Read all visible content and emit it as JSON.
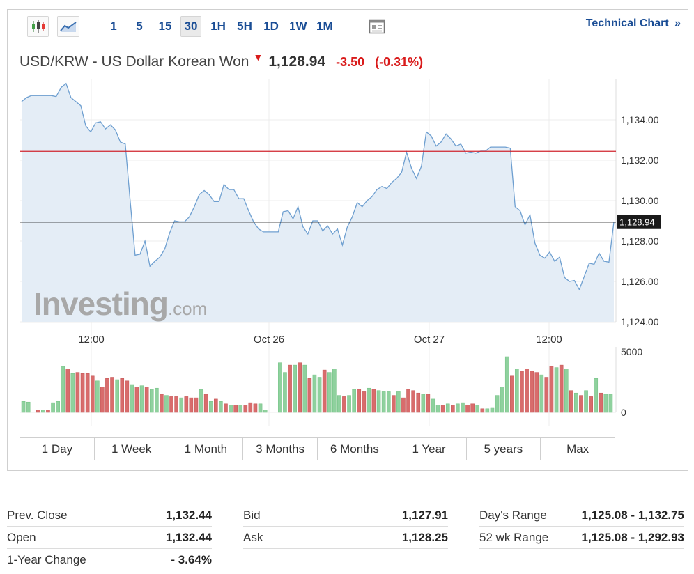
{
  "toolbar": {
    "timeframes": [
      "1",
      "5",
      "15",
      "30",
      "1H",
      "5H",
      "1D",
      "1W",
      "1M"
    ],
    "active_timeframe": "30",
    "technical_chart_label": "Technical Chart",
    "technical_chart_arrow": "»"
  },
  "quote": {
    "pair": "USD/KRW - US Dollar Korean Won",
    "last": "1,128.94",
    "change": "-3.50",
    "change_pct": "(-0.31%)"
  },
  "logo": {
    "main": "Investing",
    "suffix": ".com"
  },
  "chart_data": {
    "type": "area",
    "xlabels": [
      "12:00",
      "Oct 26",
      "Oct 27",
      "12:00"
    ],
    "ytick_labels": [
      "1,134.00",
      "1,132.00",
      "1,130.00",
      "1,128.00",
      "1,126.00",
      "1,124.00"
    ],
    "ylim": [
      1124,
      1136
    ],
    "last_value_label": "1,128.94",
    "reference_line_value": 1132.44,
    "current_line_value": 1128.94,
    "price": [
      1134.9,
      1135.1,
      1135.2,
      1135.2,
      1135.2,
      1135.2,
      1135.2,
      1135.15,
      1135.6,
      1135.8,
      1135.1,
      1134.9,
      1134.7,
      1133.7,
      1133.4,
      1133.85,
      1133.9,
      1133.55,
      1133.75,
      1133.5,
      1132.9,
      1132.8,
      1130.0,
      1127.3,
      1127.35,
      1128.0,
      1126.75,
      1127.0,
      1127.2,
      1127.6,
      1128.4,
      1129.0,
      1128.95,
      1128.95,
      1129.2,
      1129.7,
      1130.3,
      1130.5,
      1130.3,
      1129.95,
      1129.95,
      1130.8,
      1130.55,
      1130.55,
      1130.1,
      1130.1,
      1129.5,
      1128.95,
      1128.6,
      1128.45,
      1128.45,
      1128.45,
      1128.45,
      1129.45,
      1129.5,
      1129.1,
      1129.7,
      1128.7,
      1128.35,
      1129.0,
      1129.0,
      1128.5,
      1128.75,
      1128.35,
      1128.6,
      1127.8,
      1128.7,
      1129.2,
      1129.9,
      1129.7,
      1130.0,
      1130.2,
      1130.55,
      1130.7,
      1130.6,
      1130.9,
      1131.1,
      1131.4,
      1132.4,
      1131.6,
      1131.1,
      1131.7,
      1133.4,
      1133.2,
      1132.7,
      1132.9,
      1133.3,
      1133.05,
      1132.7,
      1132.8,
      1132.35,
      1132.4,
      1132.35,
      1132.45,
      1132.45,
      1132.65,
      1132.65,
      1132.65,
      1132.65,
      1132.6,
      1129.7,
      1129.5,
      1128.8,
      1129.3,
      1127.9,
      1127.3,
      1127.15,
      1127.45,
      1127.0,
      1127.2,
      1126.2,
      1126.0,
      1126.05,
      1125.6,
      1126.25,
      1126.9,
      1126.85,
      1127.4,
      1127.0,
      1126.95,
      1128.94
    ],
    "volume_axis_labels": [
      "5000",
      "0"
    ],
    "volume_max": 5000,
    "volume": [
      900,
      850,
      0,
      200,
      200,
      200,
      800,
      900,
      3800,
      3600,
      3200,
      3300,
      3200,
      3200,
      3000,
      2600,
      2100,
      2800,
      2900,
      2700,
      2800,
      2600,
      2300,
      2100,
      2200,
      2100,
      1900,
      2000,
      1500,
      1400,
      1300,
      1300,
      1200,
      1300,
      1200,
      1200,
      1900,
      1500,
      900,
      1100,
      900,
      700,
      600,
      600,
      600,
      600,
      800,
      700,
      700,
      200,
      0,
      0,
      4100,
      3300,
      3900,
      3900,
      4100,
      3900,
      2800,
      3100,
      2900,
      3500,
      3300,
      3600,
      1400,
      1300,
      1400,
      1900,
      1900,
      1700,
      2000,
      1900,
      1800,
      1700,
      1700,
      1400,
      1700,
      1200,
      1900,
      1800,
      1600,
      1500,
      1500,
      1100,
      600,
      600,
      700,
      600,
      700,
      800,
      600,
      700,
      600,
      300,
      300,
      400,
      1400,
      2100,
      4600,
      3000,
      3600,
      3400,
      3600,
      3400,
      3300,
      3100,
      2900,
      3800,
      3700,
      3900,
      3600,
      1800,
      1600,
      1400,
      1800,
      1300,
      2800,
      1600,
      1500,
      1500
    ],
    "volume_colors": [
      "g",
      "g",
      "g",
      "r",
      "g",
      "r",
      "g",
      "g",
      "g",
      "r",
      "g",
      "r",
      "r",
      "r",
      "r",
      "g",
      "r",
      "r",
      "r",
      "g",
      "r",
      "r",
      "g",
      "r",
      "g",
      "r",
      "g",
      "g",
      "r",
      "g",
      "r",
      "r",
      "g",
      "r",
      "r",
      "r",
      "g",
      "r",
      "g",
      "r",
      "g",
      "r",
      "g",
      "r",
      "g",
      "r",
      "r",
      "r",
      "g",
      "g",
      "g",
      "r",
      "g",
      "g",
      "r",
      "g",
      "r",
      "g",
      "r",
      "g",
      "g",
      "r",
      "g",
      "g",
      "g",
      "r",
      "g",
      "g",
      "r",
      "r",
      "g",
      "r",
      "g",
      "g",
      "g",
      "r",
      "g",
      "r",
      "r",
      "r",
      "r",
      "g",
      "r",
      "g",
      "g",
      "r",
      "g",
      "r",
      "g",
      "g",
      "r",
      "r",
      "g",
      "r",
      "g",
      "g",
      "g",
      "g",
      "g",
      "r",
      "g",
      "r",
      "r",
      "r",
      "r",
      "g",
      "r",
      "r",
      "g",
      "r",
      "g",
      "r",
      "g",
      "r",
      "g",
      "r",
      "g",
      "r",
      "g",
      "g"
    ],
    "colors": {
      "line": "#6e9fd0",
      "fill": "#e4edf6",
      "ref_line": "#d0242e",
      "cur_line": "#1a1a1a",
      "vol_up": "#8fd19e",
      "vol_down": "#d86c6c"
    }
  },
  "ranges": [
    "1 Day",
    "1 Week",
    "1 Month",
    "3 Months",
    "6 Months",
    "1 Year",
    "5 years",
    "Max"
  ],
  "stats": [
    {
      "label": "Prev. Close",
      "value": "1,132.44"
    },
    {
      "label": "Open",
      "value": "1,132.44"
    },
    {
      "label": "1-Year Change",
      "value": "- 3.64%"
    },
    {
      "label": "Bid",
      "value": "1,127.91"
    },
    {
      "label": "Ask",
      "value": "1,128.25"
    },
    {
      "label": "Day's Range",
      "value": "1,125.08 - 1,132.75"
    },
    {
      "label": "52 wk Range",
      "value": "1,125.08 - 1,292.93"
    }
  ]
}
